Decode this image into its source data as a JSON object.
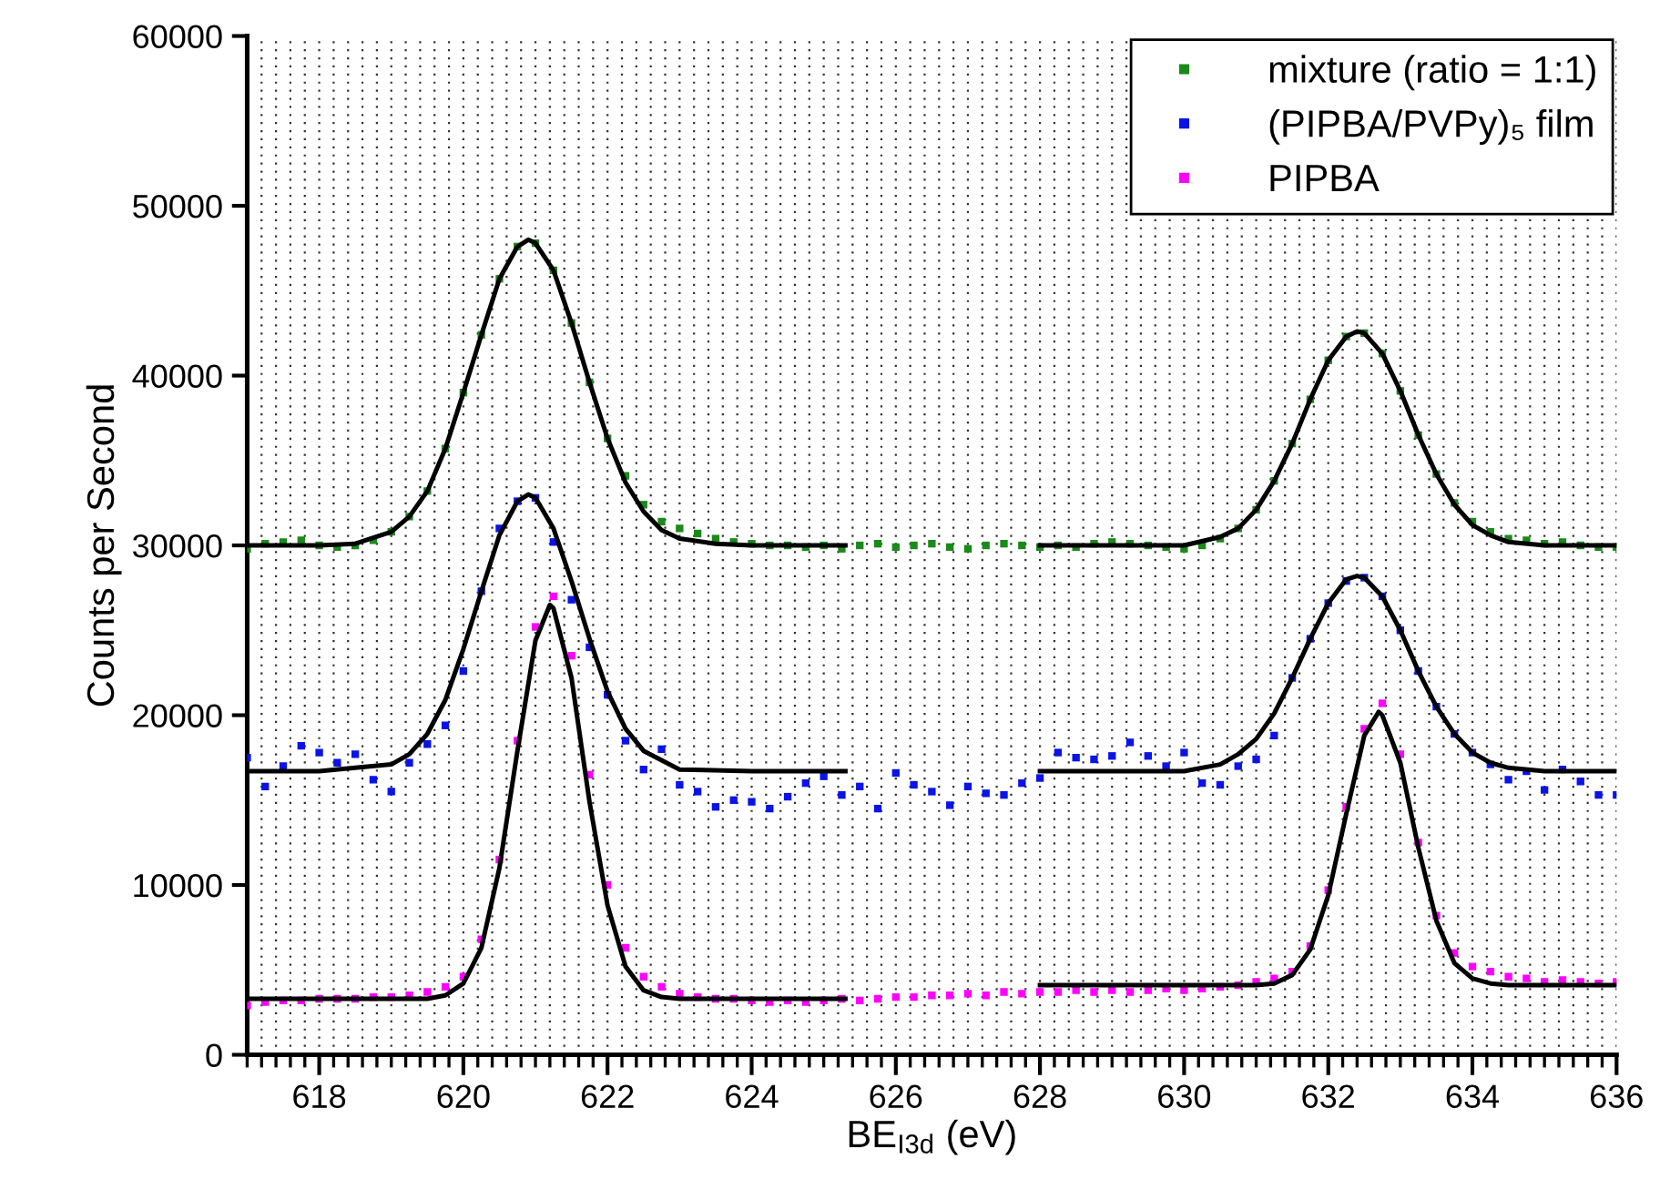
{
  "chart_data": {
    "type": "scatter",
    "xlabel": "BE$_{I3d}$ (eV)",
    "ylabel": "Counts per Second",
    "xlim": [
      617,
      636
    ],
    "ylim": [
      0,
      60000
    ],
    "yticks": [
      0,
      10000,
      20000,
      30000,
      40000,
      50000,
      60000
    ],
    "xticks": [
      {
        "value": 617,
        "label": null
      },
      {
        "value": 617.2,
        "label": null
      },
      {
        "value": 617.4,
        "label": null
      },
      {
        "value": 617.6,
        "label": null
      },
      {
        "value": 617.8,
        "label": null
      },
      618,
      {
        "value": 618.2,
        "label": null
      },
      {
        "value": 618.4,
        "label": null
      },
      {
        "value": 618.6,
        "label": null
      },
      {
        "value": 618.8,
        "label": null
      },
      {
        "value": 619,
        "label": null
      },
      {
        "value": 619.2,
        "label": null
      },
      {
        "value": 619.4,
        "label": null
      },
      {
        "value": 619.6,
        "label": null
      },
      {
        "value": 619.8,
        "label": null
      },
      620,
      {
        "value": 620.2,
        "label": null
      },
      {
        "value": 620.4,
        "label": null
      },
      {
        "value": 620.6,
        "label": null
      },
      {
        "value": 620.8,
        "label": null
      },
      {
        "value": 621,
        "label": null
      },
      {
        "value": 621.2,
        "label": null
      },
      {
        "value": 621.4,
        "label": null
      },
      {
        "value": 621.6,
        "label": null
      },
      {
        "value": 621.8,
        "label": null
      },
      622,
      {
        "value": 622.2,
        "label": null
      },
      {
        "value": 622.4,
        "label": null
      },
      {
        "value": 622.6,
        "label": null
      },
      {
        "value": 622.8,
        "label": null
      },
      {
        "value": 623,
        "label": null
      },
      {
        "value": 623.2,
        "label": null
      },
      {
        "value": 623.4,
        "label": null
      },
      {
        "value": 623.6,
        "label": null
      },
      {
        "value": 623.8,
        "label": null
      },
      624,
      {
        "value": 624.2,
        "label": null
      },
      {
        "value": 624.4,
        "label": null
      },
      {
        "value": 624.6,
        "label": null
      },
      {
        "value": 624.8,
        "label": null
      },
      {
        "value": 625,
        "label": null
      },
      {
        "value": 625.2,
        "label": null
      },
      {
        "value": 625.4,
        "label": null
      },
      {
        "value": 625.6,
        "label": null
      },
      {
        "value": 625.8,
        "label": null
      },
      626,
      {
        "value": 626.2,
        "label": null
      },
      {
        "value": 626.4,
        "label": null
      },
      {
        "value": 626.6,
        "label": null
      },
      {
        "value": 626.8,
        "label": null
      },
      {
        "value": 627,
        "label": null
      },
      {
        "value": 627.2,
        "label": null
      },
      {
        "value": 627.4,
        "label": null
      },
      {
        "value": 627.6,
        "label": null
      },
      {
        "value": 627.8,
        "label": null
      },
      628,
      {
        "value": 628.2,
        "label": null
      },
      {
        "value": 628.4,
        "label": null
      },
      {
        "value": 628.6,
        "label": null
      },
      {
        "value": 628.8,
        "label": null
      },
      {
        "value": 629,
        "label": null
      },
      {
        "value": 629.2,
        "label": null
      },
      {
        "value": 629.4,
        "label": null
      },
      {
        "value": 629.6,
        "label": null
      },
      {
        "value": 629.8,
        "label": null
      },
      630,
      {
        "value": 630.2,
        "label": null
      },
      {
        "value": 630.4,
        "label": null
      },
      {
        "value": 630.6,
        "label": null
      },
      {
        "value": 630.8,
        "label": null
      },
      {
        "value": 631,
        "label": null
      },
      {
        "value": 631.2,
        "label": null
      },
      {
        "value": 631.4,
        "label": null
      },
      {
        "value": 631.6,
        "label": null
      },
      {
        "value": 631.8,
        "label": null
      },
      632,
      {
        "value": 632.2,
        "label": null
      },
      {
        "value": 632.4,
        "label": null
      },
      {
        "value": 632.6,
        "label": null
      },
      {
        "value": 632.8,
        "label": null
      },
      {
        "value": 633,
        "label": null
      },
      {
        "value": 633.2,
        "label": null
      },
      {
        "value": 633.4,
        "label": null
      },
      {
        "value": 633.6,
        "label": null
      },
      {
        "value": 633.8,
        "label": null
      },
      634,
      {
        "value": 634.2,
        "label": null
      },
      {
        "value": 634.4,
        "label": null
      },
      {
        "value": 634.6,
        "label": null
      },
      {
        "value": 634.8,
        "label": null
      },
      {
        "value": 635,
        "label": null
      },
      {
        "value": 635.2,
        "label": null
      },
      {
        "value": 635.4,
        "label": null
      },
      {
        "value": 635.6,
        "label": null
      },
      {
        "value": 635.8,
        "label": null
      },
      636
    ],
    "grid": "x",
    "legend": "top right",
    "marker": "square",
    "x": [
      617,
      617.25,
      617.5,
      617.75,
      618,
      618.25,
      618.5,
      618.75,
      619,
      619.25,
      619.5,
      619.75,
      620,
      620.25,
      620.5,
      620.75,
      621,
      621.25,
      621.5,
      621.75,
      622,
      622.25,
      622.5,
      622.75,
      623,
      623.25,
      623.5,
      623.75,
      624,
      624.25,
      624.5,
      624.75,
      625,
      625.25,
      625.5,
      625.75,
      626,
      626.25,
      626.5,
      626.75,
      627,
      627.25,
      627.5,
      627.75,
      628,
      628.25,
      628.5,
      628.75,
      629,
      629.25,
      629.5,
      629.75,
      630,
      630.25,
      630.5,
      630.75,
      631,
      631.25,
      631.5,
      631.75,
      632,
      632.25,
      632.5,
      632.75,
      633,
      633.25,
      633.5,
      633.75,
      634,
      634.25,
      634.5,
      634.75,
      635,
      635.25,
      635.5,
      635.75,
      636
    ],
    "series": [
      {
        "name": "mixture (ratio = 1:1)",
        "color": "#1a8a1a",
        "values": [
          29800,
          30100,
          30200,
          30300,
          30000,
          29900,
          30000,
          30300,
          30800,
          31700,
          33200,
          35700,
          39000,
          42400,
          45700,
          47600,
          47800,
          46200,
          43100,
          39600,
          36300,
          34100,
          32400,
          31400,
          31000,
          30700,
          30400,
          30200,
          30100,
          30000,
          30000,
          29900,
          30000,
          29800,
          30000,
          30100,
          29900,
          30000,
          30100,
          29900,
          29800,
          30000,
          30100,
          30000,
          29900,
          30000,
          29900,
          30100,
          30200,
          30100,
          30000,
          29900,
          29800,
          30000,
          30400,
          31000,
          32100,
          33800,
          36000,
          38600,
          40900,
          42300,
          42500,
          41300,
          39100,
          36500,
          34200,
          32500,
          31400,
          30800,
          30400,
          30300,
          30100,
          30200,
          30000,
          29900,
          29900
        ]
      },
      {
        "name": "(PIPBA/PVPy)₅ film",
        "color": "#0a14e6",
        "values": [
          17500,
          15800,
          17000,
          18200,
          17800,
          17200,
          17700,
          16200,
          15500,
          17200,
          18300,
          19400,
          22600,
          27300,
          31000,
          32600,
          32800,
          30200,
          26800,
          24000,
          21200,
          18500,
          16800,
          18000,
          15900,
          15500,
          14600,
          15000,
          14900,
          14500,
          15200,
          16000,
          16400,
          15300,
          15800,
          14500,
          16600,
          15900,
          15500,
          14700,
          15800,
          15400,
          15300,
          16000,
          16300,
          17800,
          17500,
          17400,
          17600,
          18400,
          17600,
          17000,
          17800,
          16000,
          15900,
          17000,
          17400,
          18800,
          22200,
          24500,
          26600,
          27900,
          28100,
          27000,
          25000,
          22600,
          20500,
          18900,
          17800,
          17100,
          16200,
          16700,
          15600,
          16800,
          16100,
          15300,
          15300
        ]
      },
      {
        "name": "PIPBA",
        "color": "#ff00ff",
        "values": [
          2900,
          3100,
          3200,
          3200,
          3300,
          3300,
          3300,
          3400,
          3400,
          3500,
          3700,
          4000,
          4600,
          6800,
          11500,
          18500,
          25200,
          27000,
          23500,
          16500,
          10000,
          6300,
          4600,
          4000,
          3600,
          3400,
          3300,
          3300,
          3200,
          3100,
          3200,
          3100,
          3200,
          3300,
          3200,
          3300,
          3400,
          3400,
          3500,
          3500,
          3600,
          3500,
          3700,
          3600,
          3700,
          3700,
          3800,
          3700,
          3800,
          3700,
          3800,
          3900,
          3800,
          3900,
          4000,
          4100,
          4300,
          4500,
          4900,
          6400,
          9700,
          14600,
          19200,
          20700,
          17700,
          12500,
          8200,
          6000,
          5200,
          4900,
          4600,
          4500,
          4300,
          4400,
          4300,
          4200,
          4300
        ]
      },
      {
        "type": "line",
        "color": "#000000",
        "marker": "none",
        "x": [
          617,
          618,
          618.5,
          619,
          619.25,
          619.5,
          619.75,
          620,
          620.25,
          620.5,
          620.75,
          620.9,
          621,
          621.25,
          621.5,
          621.75,
          622,
          622.25,
          622.5,
          622.75,
          623,
          623.5,
          624,
          625.3,
          626.5,
          628,
          629,
          630,
          630.5,
          630.75,
          631,
          631.25,
          631.5,
          631.75,
          632,
          632.25,
          632.4,
          632.5,
          632.75,
          633,
          633.25,
          633.5,
          633.75,
          634,
          634.25,
          634.5,
          635,
          636
        ],
        "values": [
          30000,
          30000,
          30100,
          30800,
          31700,
          33200,
          35700,
          39000,
          42400,
          45700,
          47600,
          48000,
          47800,
          46200,
          43100,
          39600,
          36300,
          33700,
          32000,
          30900,
          30400,
          30100,
          30000,
          30000,
          null,
          30000,
          30000,
          30000,
          30500,
          31000,
          32100,
          33800,
          36000,
          38600,
          40900,
          42300,
          42600,
          42500,
          41300,
          39100,
          36500,
          34200,
          32400,
          31200,
          30600,
          30200,
          30000,
          30000
        ]
      },
      {
        "type": "line",
        "color": "#000000",
        "marker": "none",
        "x": [
          617,
          618,
          619,
          619.25,
          619.5,
          619.75,
          620,
          620.25,
          620.5,
          620.75,
          620.9,
          621,
          621.25,
          621.5,
          621.75,
          622,
          622.25,
          622.5,
          623,
          624,
          625.3,
          626.5,
          628,
          630,
          630.5,
          630.75,
          631,
          631.25,
          631.5,
          631.75,
          632,
          632.25,
          632.4,
          632.5,
          632.75,
          633,
          633.25,
          633.5,
          633.75,
          634,
          634.25,
          634.5,
          635,
          636
        ],
        "values": [
          16700,
          16700,
          17100,
          17700,
          18900,
          20900,
          23900,
          27300,
          30600,
          32600,
          33000,
          32800,
          31000,
          27900,
          24500,
          21400,
          19200,
          17900,
          16800,
          16700,
          16700,
          null,
          16700,
          16700,
          17100,
          17700,
          18600,
          20100,
          22200,
          24500,
          26600,
          28000,
          28200,
          28100,
          27000,
          25000,
          22600,
          20500,
          18900,
          17800,
          17200,
          16900,
          16700,
          16700
        ]
      },
      {
        "type": "line",
        "color": "#000000",
        "marker": "none",
        "x": [
          617,
          618,
          619,
          619.5,
          619.75,
          620,
          620.25,
          620.5,
          620.75,
          621,
          621.2,
          621.25,
          621.5,
          621.75,
          622,
          622.25,
          622.5,
          622.75,
          623,
          624,
          625.3,
          626.5,
          628,
          629,
          630,
          631,
          631.25,
          631.5,
          631.75,
          632,
          632.25,
          632.5,
          632.7,
          632.75,
          633,
          633.25,
          633.5,
          633.75,
          634,
          634.25,
          634.5,
          635,
          636
        ],
        "values": [
          3300,
          3300,
          3300,
          3300,
          3500,
          4200,
          6300,
          11000,
          17900,
          24400,
          26500,
          26300,
          22200,
          14900,
          8800,
          5200,
          3800,
          3400,
          3300,
          3300,
          3300,
          null,
          4100,
          4100,
          4100,
          4100,
          4200,
          4700,
          6200,
          9400,
          14200,
          18800,
          20200,
          20000,
          17200,
          12200,
          7900,
          5400,
          4500,
          4200,
          4100,
          4100,
          4100
        ]
      }
    ]
  }
}
